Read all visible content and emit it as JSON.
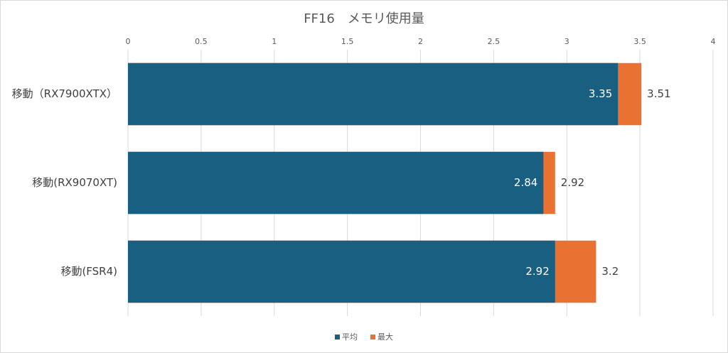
{
  "chart_data": {
    "type": "bar",
    "orientation": "horizontal",
    "overlap": true,
    "title": "FF16　メモリ使用量",
    "categories": [
      "移動（RX7900XTX）",
      "移動(RX9070XT)",
      "移動(FSR4)"
    ],
    "series": [
      {
        "name": "平均",
        "color": "#185f82",
        "values": [
          3.35,
          2.84,
          2.92
        ]
      },
      {
        "name": "最大",
        "color": "#e97132",
        "values": [
          3.51,
          2.92,
          3.2
        ]
      }
    ],
    "xlim": [
      0,
      4
    ],
    "xticks": [
      0,
      0.5,
      1,
      1.5,
      2,
      2.5,
      3,
      3.5,
      4
    ],
    "grid": true,
    "legend": "bottom"
  }
}
